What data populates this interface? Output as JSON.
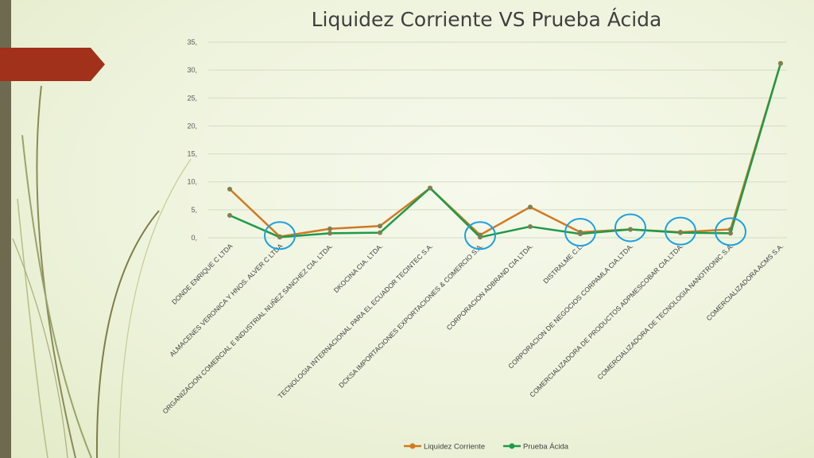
{
  "colors": {
    "liquidez": "#d07a22",
    "prueba": "#1e9a4a",
    "circle": "#1aa0e0",
    "grid": "#d5dcc4"
  },
  "chart_data": {
    "type": "line",
    "title": "Liquidez Corriente VS Prueba Ácida",
    "ylim": [
      0,
      35
    ],
    "yticks": [
      "0,",
      "5,",
      "10,",
      "15,",
      "20,",
      "25,",
      "30,",
      "35,"
    ],
    "grid": true,
    "legend": "bottom",
    "categories": [
      "DONDE ENRIQUE C LTDA",
      "ALMACENES VERONICA Y HNOS. ALVER C LTDA",
      "ORGANIZACION COMERCIAL E INDUSTRIAL NUÑEZ SANCHEZ CIA. LTDA.",
      "DKOCINA CIA. LTDA.",
      "TECNOLOGIA INTERNACIONAL PARA EL ECUADOR TECINTEC S.A.",
      "DCKSA IMPORTACIONES EXPORTACIONES & COMERCIO S.A.",
      "CORPORACION ADBRAND CIA LTDA.",
      "DISTRALME C.L.",
      "CORPORACION DE NEGOCIOS CORPAMLA CIA.LTDA.",
      "COMERCIALIZADORA DE PRODUCTOS ADPMESCOBAR CIA.LTDA.",
      "COMERCIALIZADORA DE TECNOLOGIA NANOTRONIC S.A.",
      "COMERCIALIZADORA ACMS S.A."
    ],
    "series": [
      {
        "name": "Liquidez Corriente",
        "values": [
          8.7,
          0.2,
          1.6,
          2.1,
          8.9,
          0.5,
          5.5,
          1.0,
          1.5,
          1.0,
          1.5,
          31.2
        ]
      },
      {
        "name": "Prueba Ácida",
        "values": [
          4.0,
          0.1,
          0.8,
          0.9,
          8.9,
          0.1,
          2.0,
          0.7,
          1.5,
          0.9,
          0.8,
          31.2
        ]
      }
    ],
    "highlighted_categories": [
      1,
      5,
      7,
      8,
      9,
      10
    ]
  }
}
